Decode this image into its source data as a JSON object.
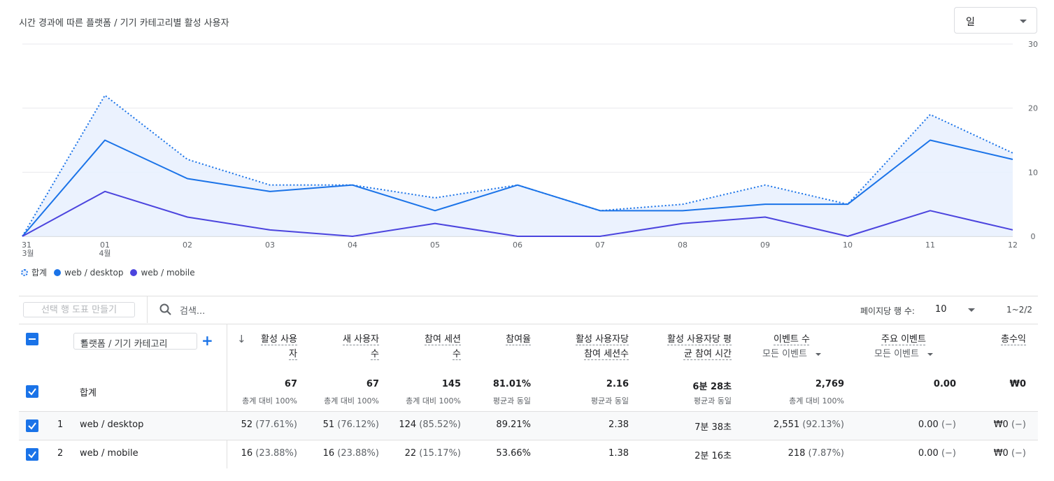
{
  "chart_title": "시간 경과에 따른 플랫폼 / 기기 카테고리별 활성 사용자",
  "period_dropdown": "일",
  "chart_data": {
    "type": "line",
    "x": [
      "31",
      "01",
      "02",
      "03",
      "04",
      "05",
      "06",
      "07",
      "08",
      "09",
      "10",
      "11",
      "12"
    ],
    "x_sublabels": {
      "0": "3월",
      "1": "4월"
    },
    "ylim": [
      0,
      30
    ],
    "yticks": [
      0,
      10,
      20,
      30
    ],
    "series": [
      {
        "name": "합계",
        "style": "dotted",
        "color": "#1a73e8",
        "values": [
          0,
          22,
          12,
          8,
          8,
          6,
          8,
          4,
          5,
          8,
          5,
          19,
          13
        ]
      },
      {
        "name": "web / desktop",
        "style": "solid",
        "color": "#1a73e8",
        "values": [
          0,
          15,
          9,
          7,
          8,
          4,
          8,
          4,
          4,
          5,
          5,
          15,
          12
        ]
      },
      {
        "name": "web / mobile",
        "style": "solid",
        "color": "#4b44de",
        "values": [
          0,
          7,
          3,
          1,
          0,
          2,
          0,
          0,
          2,
          3,
          0,
          4,
          1
        ]
      }
    ]
  },
  "legend": [
    "합계",
    "web / desktop",
    "web / mobile"
  ],
  "toolbar": {
    "create_chart": "선택 행 도표 만들기",
    "search_placeholder": "검색...",
    "rows_per_page_label": "페이지당 행 수:",
    "rows_per_page": "10",
    "pagination": "1~2/2"
  },
  "dimension": "플랫폼 / 기기 카테고리",
  "columns": [
    {
      "l1": "활성 사용",
      "l2": "자",
      "sort": "↓"
    },
    {
      "l1": "새 사용자",
      "l2": "수"
    },
    {
      "l1": "참여 세션",
      "l2": "수"
    },
    {
      "l1": "참여율",
      "l2": ""
    },
    {
      "l1": "활성 사용자당",
      "l2": "참여 세션수"
    },
    {
      "l1": "활성 사용자당 평",
      "l2": "균 참여 시간"
    },
    {
      "l1": "이벤트 수",
      "sub": "모든 이벤트"
    },
    {
      "l1": "주요 이벤트",
      "sub": "모든 이벤트"
    },
    {
      "l1": "총수익",
      "l2": ""
    }
  ],
  "totals": {
    "label": "합계",
    "values": [
      "67",
      "67",
      "145",
      "81.01%",
      "2.16",
      "6분 28초",
      "2,769",
      "0.00",
      "₩0"
    ],
    "notes": [
      "총계 대비 100%",
      "총계 대비 100%",
      "총계 대비 100%",
      "평균과 동일",
      "평균과 동일",
      "평균과 동일",
      "총계 대비 100%",
      "",
      ""
    ]
  },
  "rows": [
    {
      "index": "1",
      "name": "web / desktop",
      "cells": [
        [
          "52",
          " (77.61%)"
        ],
        [
          "51",
          " (76.12%)"
        ],
        [
          "124",
          " (85.52%)"
        ],
        [
          "89.21%",
          ""
        ],
        [
          "2.38",
          ""
        ],
        [
          "7분 38초",
          ""
        ],
        [
          "2,551",
          " (92.13%)"
        ],
        [
          "0.00",
          " (−)"
        ],
        [
          "₩0",
          " (−)"
        ]
      ]
    },
    {
      "index": "2",
      "name": "web / mobile",
      "cells": [
        [
          "16",
          " (23.88%)"
        ],
        [
          "16",
          " (23.88%)"
        ],
        [
          "22",
          " (15.17%)"
        ],
        [
          "53.66%",
          ""
        ],
        [
          "1.38",
          ""
        ],
        [
          "2분 16초",
          ""
        ],
        [
          "218",
          " (7.87%)"
        ],
        [
          "0.00",
          " (−)"
        ],
        [
          "₩0",
          " (−)"
        ]
      ]
    }
  ]
}
